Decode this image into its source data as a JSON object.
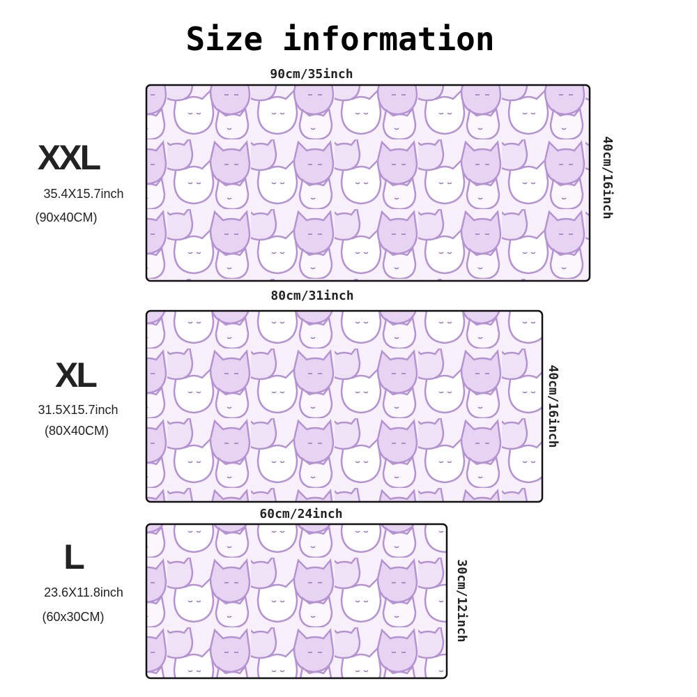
{
  "title": "Size information",
  "sizes": [
    {
      "label": "XXL",
      "inches": "35.4X15.7inch",
      "cm": "(90x40CM)",
      "width_label": "90cm/35inch",
      "height_label": "40cm/16inch"
    },
    {
      "label": "XL",
      "inches": "31.5X15.7inch",
      "cm": "(80X40CM)",
      "width_label": "80cm/31inch",
      "height_label": "40cm/16inch"
    },
    {
      "label": "L",
      "inches": "23.6X11.8inch",
      "cm": "(60x30CM)",
      "width_label": "60cm/24inch",
      "height_label": "30cm/12inch"
    }
  ]
}
